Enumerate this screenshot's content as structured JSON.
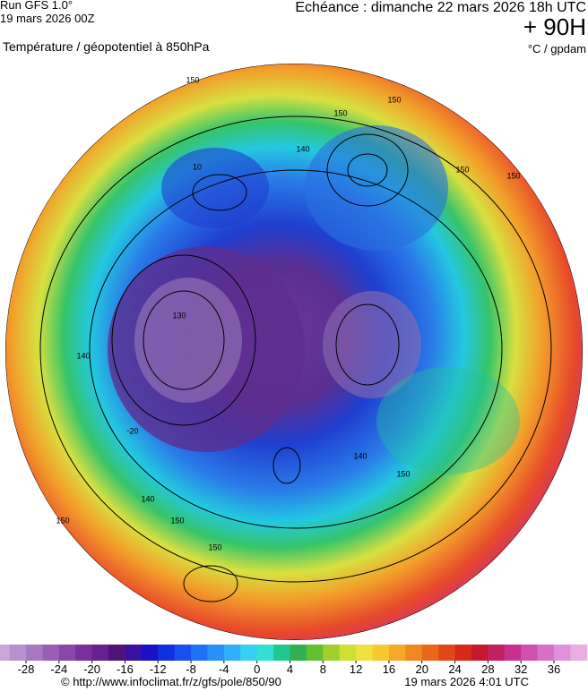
{
  "header": {
    "run": "Run GFS 1.0°",
    "run_date": "19 mars 2026 00Z",
    "echeance": "Echéance : dimanche 22 mars 2026 18h UTC",
    "lead": "+ 90H",
    "title": "Température / géopotentiel à 850hPa",
    "units": "°C / gpdam"
  },
  "map": {
    "contour_labels": [
      "150",
      "150",
      "150",
      "140",
      "150",
      "150",
      "130",
      "140",
      "140",
      "150",
      "150",
      "150",
      "140",
      "150",
      "10",
      "-20"
    ]
  },
  "colorbar": {
    "ticks": [
      -28,
      -24,
      -20,
      -16,
      -12,
      -8,
      -4,
      0,
      4,
      8,
      12,
      16,
      20,
      24,
      28,
      32,
      36
    ]
  },
  "footer": {
    "url": "© http://www.infoclimat.fr/z/gfs/pole/850/90",
    "stamp": "19 mars 2026  4:01 UTC"
  }
}
